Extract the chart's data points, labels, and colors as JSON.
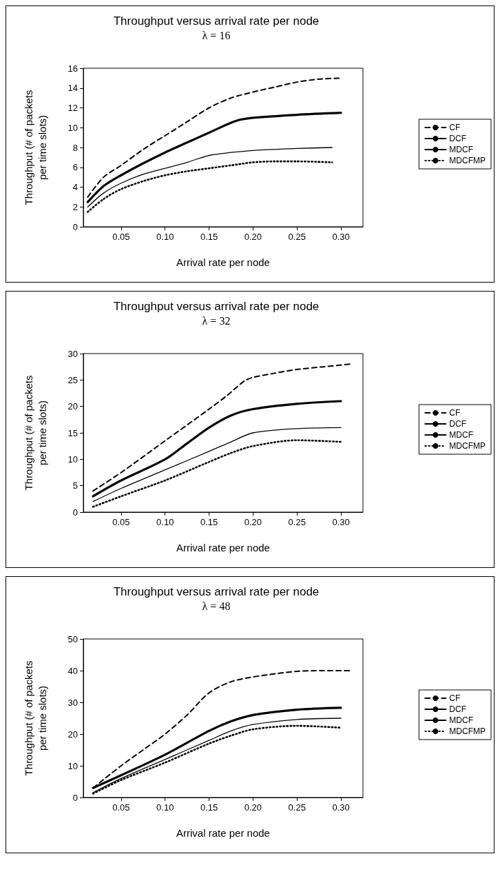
{
  "chart_data": [
    {
      "type": "line",
      "title": "Throughput versus arrival rate per node",
      "subtitle": "λ = 16",
      "xlabel": "Arrival rate per node",
      "ylabel": "Throughput (# of packets\nper time slots)",
      "legend": "right",
      "grid": false,
      "marker": "none",
      "xlim": [
        0.007,
        0.325
      ],
      "ylim": [
        0,
        16
      ],
      "yticks": [
        0,
        2,
        4,
        6,
        8,
        10,
        12,
        14,
        16
      ],
      "xticks": [
        0.05,
        {
          "value": 0.1,
          "label": "0.10"
        },
        0.15,
        {
          "value": 0.2,
          "label": "0.20"
        },
        0.25,
        {
          "value": 0.3,
          "label": "0.30"
        }
      ],
      "series": [
        {
          "name": "CF",
          "color": "#000000",
          "line_style": "dashed",
          "x": [
            0.012,
            0.03,
            0.05,
            0.075,
            0.1,
            0.125,
            0.15,
            0.175,
            0.2,
            0.225,
            0.25,
            0.275,
            0.3
          ],
          "values": [
            3.0,
            5.0,
            6.2,
            7.8,
            9.2,
            10.6,
            12.0,
            13.0,
            13.6,
            14.1,
            14.6,
            14.9,
            15.0
          ]
        },
        {
          "name": "DCF",
          "color": "#000000",
          "line_style": "solid",
          "x": [
            0.012,
            0.03,
            0.05,
            0.075,
            0.1,
            0.125,
            0.15,
            0.175,
            0.185,
            0.2,
            0.25,
            0.3
          ],
          "values": [
            2.5,
            4.1,
            5.2,
            6.4,
            7.5,
            8.5,
            9.5,
            10.5,
            10.8,
            11.0,
            11.3,
            11.5
          ]
        },
        {
          "name": "MDCF",
          "color": "#000000",
          "line_style": "solid",
          "x": [
            0.012,
            0.03,
            0.05,
            0.075,
            0.1,
            0.125,
            0.15,
            0.175,
            0.2,
            0.25,
            0.29
          ],
          "values": [
            2.0,
            3.4,
            4.4,
            5.3,
            5.9,
            6.5,
            7.2,
            7.5,
            7.7,
            7.9,
            8.0
          ]
        },
        {
          "name": "MDCFMP",
          "color": "#000000",
          "line_style": "dotted",
          "x": [
            0.012,
            0.03,
            0.05,
            0.075,
            0.1,
            0.125,
            0.15,
            0.175,
            0.2,
            0.225,
            0.25,
            0.29
          ],
          "values": [
            1.5,
            2.8,
            3.8,
            4.6,
            5.2,
            5.6,
            5.9,
            6.2,
            6.5,
            6.6,
            6.6,
            6.5
          ]
        }
      ]
    },
    {
      "type": "line",
      "title": "Throughput versus arrival rate per node",
      "subtitle": "λ = 32",
      "xlabel": "Arrival rate per node",
      "ylabel": "Throughput (# of packets\nper time slots)",
      "legend": "right",
      "grid": false,
      "marker": "none",
      "xlim": [
        0.007,
        0.325
      ],
      "ylim": [
        0,
        30
      ],
      "yticks": [
        0,
        5,
        10,
        15,
        20,
        25,
        30
      ],
      "xticks": [
        0.05,
        {
          "value": 0.1,
          "label": "0.10"
        },
        0.15,
        {
          "value": 0.2,
          "label": "0.20"
        },
        0.25,
        {
          "value": 0.3,
          "label": "0.30"
        }
      ],
      "series": [
        {
          "name": "CF",
          "color": "#000000",
          "line_style": "dashed",
          "x": [
            0.018,
            0.05,
            0.1,
            0.15,
            0.17,
            0.19,
            0.2,
            0.225,
            0.25,
            0.28,
            0.31
          ],
          "values": [
            4,
            7.5,
            13.5,
            19.5,
            22,
            24.8,
            25.5,
            26.3,
            27,
            27.5,
            28
          ]
        },
        {
          "name": "DCF",
          "color": "#000000",
          "line_style": "solid",
          "x": [
            0.018,
            0.05,
            0.1,
            0.125,
            0.15,
            0.175,
            0.2,
            0.25,
            0.3
          ],
          "values": [
            3,
            6,
            10,
            13,
            16,
            18.3,
            19.5,
            20.5,
            21
          ]
        },
        {
          "name": "MDCF",
          "color": "#000000",
          "line_style": "solid",
          "x": [
            0.018,
            0.05,
            0.1,
            0.15,
            0.175,
            0.2,
            0.25,
            0.3
          ],
          "values": [
            2,
            4.5,
            8,
            11.5,
            13.3,
            15,
            15.8,
            16
          ]
        },
        {
          "name": "MDCFMP",
          "color": "#000000",
          "line_style": "dotted",
          "x": [
            0.018,
            0.05,
            0.1,
            0.15,
            0.175,
            0.2,
            0.25,
            0.3
          ],
          "values": [
            1,
            3,
            6,
            9.5,
            11.2,
            12.5,
            13.6,
            13.3
          ]
        }
      ]
    },
    {
      "type": "line",
      "title": "Throughput versus arrival rate per node",
      "subtitle": "λ = 48",
      "xlabel": "Arrival rate per node",
      "ylabel": "Throughput (# of packets\nper time slots)",
      "legend": "right",
      "grid": false,
      "marker": "none",
      "xlim": [
        0.007,
        0.325
      ],
      "ylim": [
        0,
        50
      ],
      "yticks": [
        0,
        10,
        20,
        30,
        40,
        50
      ],
      "xticks": [
        0.05,
        {
          "value": 0.1,
          "label": "0.10"
        },
        0.15,
        {
          "value": 0.2,
          "label": "0.20"
        },
        0.25,
        {
          "value": 0.3,
          "label": "0.30"
        }
      ],
      "series": [
        {
          "name": "CF",
          "color": "#000000",
          "line_style": "dashed",
          "x": [
            0.018,
            0.05,
            0.075,
            0.1,
            0.125,
            0.15,
            0.175,
            0.2,
            0.225,
            0.25,
            0.28,
            0.31
          ],
          "values": [
            3,
            10,
            15,
            20,
            26,
            33,
            36.5,
            38,
            39,
            39.8,
            40,
            40
          ]
        },
        {
          "name": "DCF",
          "color": "#000000",
          "line_style": "solid",
          "x": [
            0.018,
            0.05,
            0.1,
            0.15,
            0.175,
            0.2,
            0.25,
            0.3
          ],
          "values": [
            3,
            7,
            13.5,
            21,
            24,
            26,
            27.7,
            28.3
          ]
        },
        {
          "name": "MDCF",
          "color": "#000000",
          "line_style": "solid",
          "x": [
            0.018,
            0.05,
            0.1,
            0.15,
            0.175,
            0.2,
            0.25,
            0.3
          ],
          "values": [
            1.5,
            6,
            12,
            18,
            21,
            23,
            24.6,
            25
          ]
        },
        {
          "name": "MDCFMP",
          "color": "#000000",
          "line_style": "dotted",
          "x": [
            0.018,
            0.05,
            0.1,
            0.15,
            0.175,
            0.2,
            0.25,
            0.3
          ],
          "values": [
            1.2,
            5.5,
            11,
            17,
            19.5,
            21.5,
            22.6,
            22
          ]
        }
      ]
    }
  ]
}
